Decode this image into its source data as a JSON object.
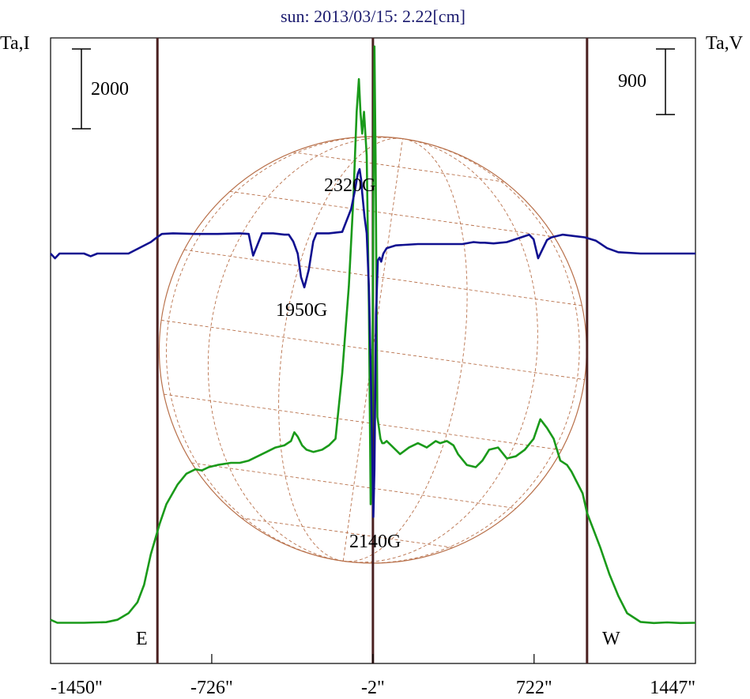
{
  "chart_data": {
    "type": "line",
    "title": "sun: 2013/03/15: 2.22[cm]",
    "left_axis_label": "Ta,I",
    "right_axis_label": "Ta,V",
    "x_unit": "arcsec",
    "xlim": [
      -1450,
      1447
    ],
    "x_tick_labels": [
      "-1450\"",
      "-726\"",
      "-2\"",
      "722\"",
      "1447\""
    ],
    "x_ticks": [
      -1450,
      -726,
      -2,
      722,
      1447
    ],
    "scale_bars": [
      {
        "label": "2000",
        "side": "left",
        "series": "I"
      },
      {
        "label": "900",
        "side": "right",
        "series": "V"
      }
    ],
    "limb_markers": [
      {
        "label": "E",
        "x": -970
      },
      {
        "label": "W",
        "x": 960
      }
    ],
    "center_marker_x": -2,
    "annotations": [
      {
        "label": "2320G",
        "x": 0,
        "y_level": 960
      },
      {
        "label": "1950G",
        "x": -290,
        "y_level": -1000
      },
      {
        "label": "2140G",
        "x": 30,
        "y_level": -5900
      }
    ],
    "disk": {
      "center_x": -2,
      "radius_arcsec": 960
    },
    "colors": {
      "I": "#1a9a1a",
      "V": "#101090",
      "markers": "#4a2020",
      "disk": "#b8704a",
      "title": "#1a1a6e"
    },
    "grid": false,
    "series": [
      {
        "name": "I",
        "axis": "left",
        "x": [
          -1450,
          -1420,
          -1300,
          -1200,
          -1150,
          -1100,
          -1060,
          -1030,
          -1000,
          -980,
          -960,
          -930,
          -880,
          -840,
          -800,
          -770,
          -740,
          -700,
          -640,
          -600,
          -560,
          -520,
          -480,
          -440,
          -400,
          -370,
          -355,
          -340,
          -320,
          -300,
          -270,
          -230,
          -200,
          -170,
          -140,
          -110,
          -90,
          -75,
          -65,
          -58,
          -50,
          -42,
          -30,
          -20,
          -12,
          -5,
          0,
          5,
          10,
          18,
          25,
          32,
          40,
          48,
          60,
          80,
          120,
          160,
          200,
          240,
          280,
          300,
          330,
          360,
          380,
          420,
          460,
          490,
          520,
          560,
          600,
          640,
          680,
          720,
          750,
          780,
          810,
          840,
          870,
          890,
          910,
          940,
          960,
          990,
          1020,
          1060,
          1100,
          1140,
          1200,
          1260,
          1320,
          1380,
          1447
        ],
        "y": [
          700,
          560,
          560,
          590,
          700,
          1000,
          1500,
          2300,
          3700,
          4400,
          5100,
          6000,
          6900,
          7400,
          7600,
          7550,
          7700,
          7800,
          7900,
          7900,
          8000,
          8200,
          8400,
          8600,
          8700,
          8900,
          9300,
          9100,
          8700,
          8500,
          8400,
          8500,
          8700,
          9000,
          12000,
          16000,
          20000,
          24000,
          25500,
          24000,
          23000,
          24000,
          22000,
          15000,
          6000,
          10000,
          20000,
          27000,
          22000,
          10000,
          9500,
          9000,
          8800,
          8800,
          8900,
          8700,
          8300,
          8600,
          8800,
          8600,
          8900,
          8800,
          8900,
          8700,
          8300,
          7800,
          7700,
          8000,
          8500,
          8600,
          8100,
          8200,
          8500,
          9000,
          9900,
          9500,
          9000,
          8000,
          7800,
          7500,
          7100,
          6500,
          5600,
          4800,
          4000,
          2800,
          1800,
          1000,
          600,
          550,
          580,
          550,
          560
        ]
      },
      {
        "name": "V",
        "axis": "right",
        "x": [
          -1450,
          -1430,
          -1410,
          -1300,
          -1270,
          -1240,
          -1200,
          -1100,
          -1000,
          -980,
          -950,
          -900,
          -800,
          -700,
          -600,
          -560,
          -540,
          -500,
          -450,
          -400,
          -380,
          -360,
          -340,
          -325,
          -310,
          -290,
          -270,
          -255,
          -240,
          -200,
          -140,
          -100,
          -85,
          -70,
          -62,
          -55,
          -50,
          -40,
          -30,
          -20,
          -10,
          0,
          5,
          12,
          20,
          28,
          35,
          45,
          60,
          100,
          200,
          300,
          400,
          450,
          480,
          500,
          540,
          600,
          700,
          720,
          740,
          780,
          800,
          850,
          900,
          950,
          1000,
          1050,
          1100,
          1200,
          1300,
          1447
        ],
        "y": [
          0,
          -70,
          0,
          0,
          -40,
          0,
          0,
          0,
          170,
          220,
          290,
          300,
          290,
          290,
          300,
          290,
          -30,
          300,
          300,
          280,
          280,
          180,
          0,
          -350,
          -500,
          -240,
          180,
          300,
          300,
          300,
          320,
          660,
          900,
          1180,
          1250,
          1100,
          900,
          550,
          300,
          -500,
          -2000,
          -3900,
          -3200,
          -900,
          -100,
          -60,
          -120,
          0,
          80,
          120,
          140,
          140,
          140,
          170,
          160,
          160,
          150,
          170,
          280,
          210,
          -70,
          200,
          240,
          280,
          260,
          240,
          190,
          80,
          20,
          0,
          0,
          0
        ]
      }
    ]
  }
}
